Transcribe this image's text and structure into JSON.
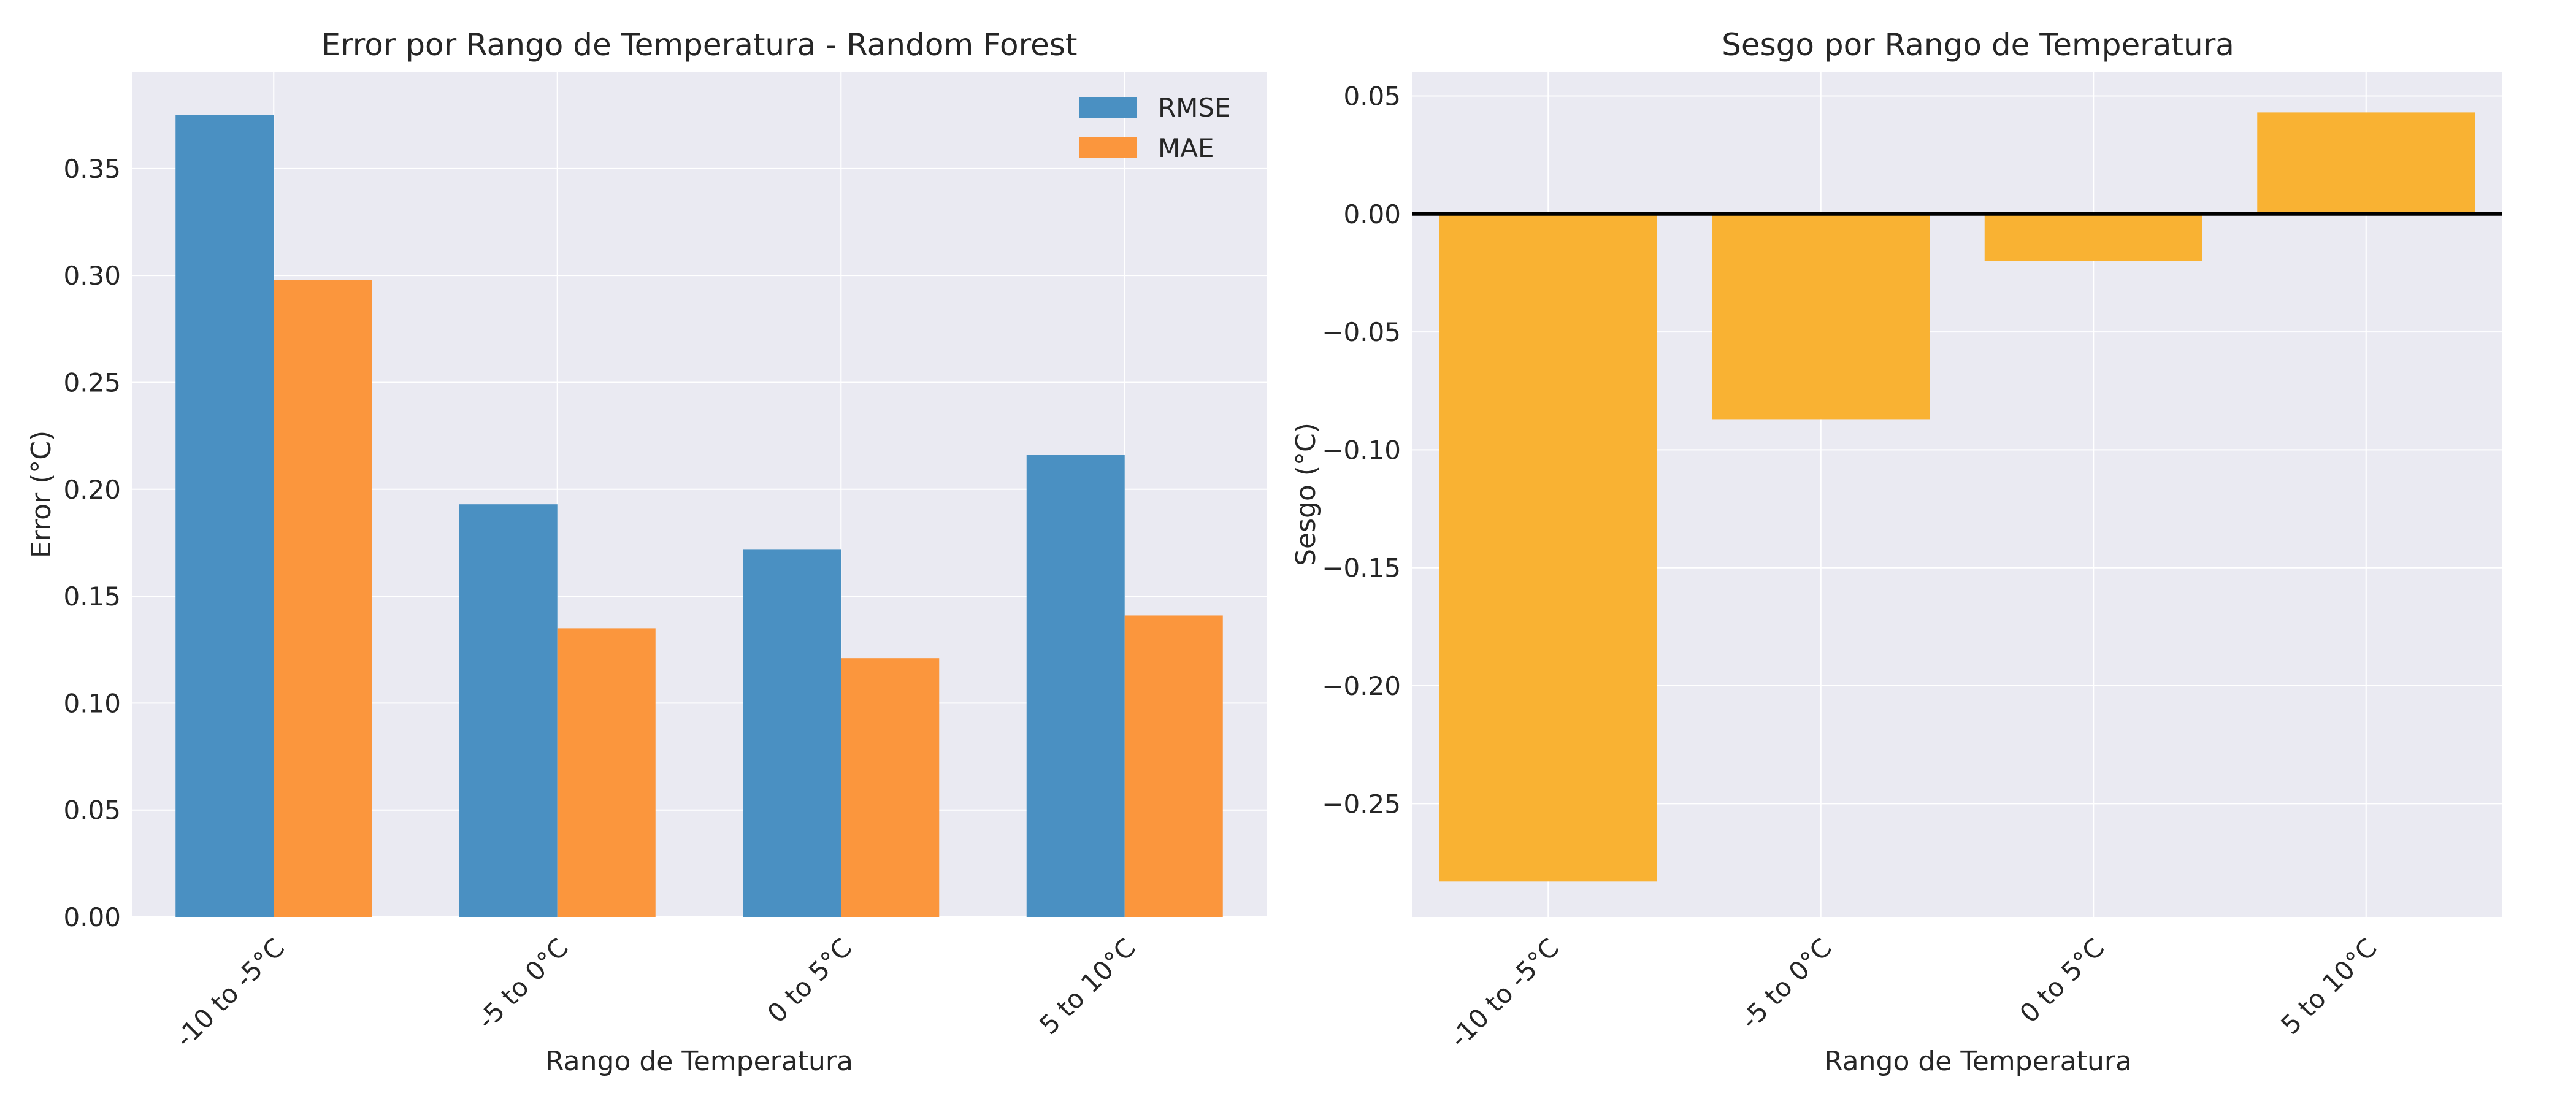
{
  "colors": {
    "background": "#ffffff",
    "plot_bg": "#eaeaf2",
    "grid": "#ffffff",
    "rmse": "#4a90c2",
    "mae": "#fb963d",
    "bias": "#f9b233",
    "zero_line": "#000000"
  },
  "chart_data": [
    {
      "type": "bar",
      "title": "Error por Rango de Temperatura - Random Forest",
      "xlabel": "Rango de Temperatura",
      "ylabel": "Error (°C)",
      "categories": [
        "-10 to -5°C",
        "-5 to 0°C",
        "0 to 5°C",
        "5 to 10°C"
      ],
      "series": [
        {
          "name": "RMSE",
          "values": [
            0.375,
            0.193,
            0.172,
            0.216
          ]
        },
        {
          "name": "MAE",
          "values": [
            0.298,
            0.135,
            0.121,
            0.141
          ]
        }
      ],
      "ylim": [
        0,
        0.395
      ],
      "yticks": [
        "0.00",
        "0.05",
        "0.10",
        "0.15",
        "0.20",
        "0.25",
        "0.30",
        "0.35"
      ],
      "grid": true,
      "legend_position": "top-right"
    },
    {
      "type": "bar",
      "title": "Sesgo por Rango de Temperatura",
      "xlabel": "Rango de Temperatura",
      "ylabel": "Sesgo (°C)",
      "categories": [
        "-10 to -5°C",
        "-5 to 0°C",
        "0 to 5°C",
        "5 to 10°C"
      ],
      "values": [
        -0.283,
        -0.087,
        -0.02,
        0.043
      ],
      "ylim": [
        -0.298,
        0.06
      ],
      "yticks": [
        "0.05",
        "0.00",
        "−0.05",
        "−0.10",
        "−0.15",
        "−0.20",
        "−0.25"
      ],
      "reference_line": 0,
      "grid": true
    }
  ]
}
